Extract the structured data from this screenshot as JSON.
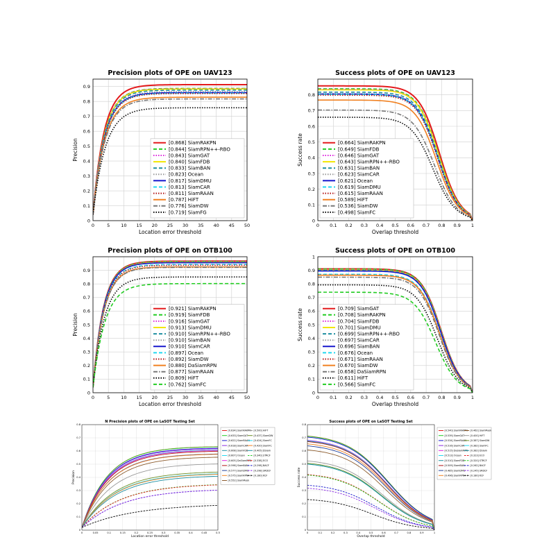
{
  "colors": {
    "red": "#e41a1c",
    "green": "#22cc22",
    "magenta": "#dd22dd",
    "yellow": "#f2e600",
    "teal": "#1e8fa0",
    "gray": "#999999",
    "blue": "#1515cc",
    "cyan": "#22d8f0",
    "darkred": "#b01010",
    "orange": "#f08020",
    "dimgray": "#777777",
    "black": "#000000",
    "navy": "#1f3f9a",
    "brown": "#8b5a2b",
    "purple": "#8a2be2",
    "olive": "#6b8e23"
  },
  "chart_data": [
    {
      "type": "line",
      "kind": "precision",
      "title": "Precision plots of OPE on UAV123",
      "xlabel": "Location error threshold",
      "ylabel": "Precision",
      "xlim": [
        0,
        50
      ],
      "ylim": [
        0,
        0.95
      ],
      "xticks": [
        0,
        5,
        10,
        15,
        20,
        25,
        30,
        35,
        40,
        45,
        50
      ],
      "yticks": [
        0,
        0.1,
        0.2,
        0.3,
        0.4,
        0.5,
        0.6,
        0.7,
        0.8,
        0.9
      ],
      "grid": true,
      "legend_loc": "lower-right",
      "series": [
        {
          "name": "[0.868] SiamRAKPN",
          "score": 0.868,
          "color": "red",
          "dash": "solid"
        },
        {
          "name": "[0.844] SiamRPN++-RBO",
          "score": 0.844,
          "color": "green",
          "dash": "dashed"
        },
        {
          "name": "[0.843] SiamGAT",
          "score": 0.843,
          "color": "magenta",
          "dash": "dotted"
        },
        {
          "name": "[0.840] SiamFDB",
          "score": 0.84,
          "color": "yellow",
          "dash": "solid"
        },
        {
          "name": "[0.833] SiamBAN",
          "score": 0.833,
          "color": "teal",
          "dash": "dashed"
        },
        {
          "name": "[0.823] Ocean",
          "score": 0.823,
          "color": "gray",
          "dash": "dotted"
        },
        {
          "name": "[0.817] SiamDMU",
          "score": 0.817,
          "color": "blue",
          "dash": "solid"
        },
        {
          "name": "[0.813] SiamCAR",
          "score": 0.813,
          "color": "cyan",
          "dash": "dashed"
        },
        {
          "name": "[0.811] SiamRAAN",
          "score": 0.811,
          "color": "darkred",
          "dash": "dotted"
        },
        {
          "name": "[0.787] HiFT",
          "score": 0.787,
          "color": "orange",
          "dash": "solid"
        },
        {
          "name": "[0.776] SiamDW",
          "score": 0.776,
          "color": "dimgray",
          "dash": "dashdot"
        },
        {
          "name": "[0.719] SiamFG",
          "score": 0.719,
          "color": "black",
          "dash": "dotted"
        }
      ]
    },
    {
      "type": "line",
      "kind": "success",
      "title": "Success plots of OPE on UAV123",
      "xlabel": "Overlap threshold",
      "ylabel": "Success rate",
      "xlim": [
        0,
        1
      ],
      "ylim": [
        0,
        0.9
      ],
      "xticks": [
        0,
        0.1,
        0.2,
        0.3,
        0.4,
        0.5,
        0.6,
        0.7,
        0.8,
        0.9,
        1
      ],
      "yticks": [
        0,
        0.1,
        0.2,
        0.3,
        0.4,
        0.5,
        0.6,
        0.7,
        0.8
      ],
      "grid": true,
      "legend_loc": "lower-left",
      "series": [
        {
          "name": "[0.664] SiamRAKPN",
          "score": 0.664,
          "color": "red",
          "dash": "solid"
        },
        {
          "name": "[0.649] SiamFDB",
          "score": 0.649,
          "color": "green",
          "dash": "dashed"
        },
        {
          "name": "[0.646] SiamGAT",
          "score": 0.646,
          "color": "magenta",
          "dash": "dotted"
        },
        {
          "name": "[0.643] SiamRPN++-RBO",
          "score": 0.643,
          "color": "yellow",
          "dash": "solid"
        },
        {
          "name": "[0.631] SiamBAN",
          "score": 0.631,
          "color": "teal",
          "dash": "dashed"
        },
        {
          "name": "[0.623] SiamCAR",
          "score": 0.623,
          "color": "gray",
          "dash": "dotted"
        },
        {
          "name": "[0.621] Ocean",
          "score": 0.621,
          "color": "blue",
          "dash": "solid"
        },
        {
          "name": "[0.619] SiamDMU",
          "score": 0.619,
          "color": "cyan",
          "dash": "dashed"
        },
        {
          "name": "[0.615] SiamRAAN",
          "score": 0.615,
          "color": "darkred",
          "dash": "dotted"
        },
        {
          "name": "[0.589] HiFT",
          "score": 0.589,
          "color": "orange",
          "dash": "solid"
        },
        {
          "name": "[0.536] SiamDW",
          "score": 0.536,
          "color": "dimgray",
          "dash": "dashdot"
        },
        {
          "name": "[0.498] SiamFC",
          "score": 0.498,
          "color": "black",
          "dash": "dotted"
        }
      ]
    },
    {
      "type": "line",
      "kind": "precision",
      "title": "Precision plots of OPE on OTB100",
      "xlabel": "Location error threshold",
      "ylabel": "Precision",
      "xlim": [
        0,
        50
      ],
      "ylim": [
        0,
        1.0
      ],
      "xticks": [
        0,
        5,
        10,
        15,
        20,
        25,
        30,
        35,
        40,
        45,
        50
      ],
      "yticks": [
        0,
        0.1,
        0.2,
        0.3,
        0.4,
        0.5,
        0.6,
        0.7,
        0.8,
        0.9
      ],
      "grid": true,
      "legend_loc": "lower-right",
      "series": [
        {
          "name": "[0.921] SiamRAKPN",
          "score": 0.921,
          "color": "red",
          "dash": "solid"
        },
        {
          "name": "[0.919] SiamFDB",
          "score": 0.919,
          "color": "green",
          "dash": "dashed"
        },
        {
          "name": "[0.916] SiamGAT",
          "score": 0.916,
          "color": "magenta",
          "dash": "dotted"
        },
        {
          "name": "[0.913] SiamDMU",
          "score": 0.913,
          "color": "yellow",
          "dash": "solid"
        },
        {
          "name": "[0.910] SiamRPN++-RBO",
          "score": 0.91,
          "color": "teal",
          "dash": "dashed"
        },
        {
          "name": "[0.910] SiamBAN",
          "score": 0.91,
          "color": "gray",
          "dash": "dotted"
        },
        {
          "name": "[0.910] SiamCAR",
          "score": 0.91,
          "color": "blue",
          "dash": "solid"
        },
        {
          "name": "[0.897] Ocean",
          "score": 0.897,
          "color": "cyan",
          "dash": "dashed"
        },
        {
          "name": "[0.892] SiamDW",
          "score": 0.892,
          "color": "darkred",
          "dash": "dotted"
        },
        {
          "name": "[0.880] DaSiamRPN",
          "score": 0.88,
          "color": "orange",
          "dash": "solid"
        },
        {
          "name": "[0.877] SiamRAAN",
          "score": 0.877,
          "color": "dimgray",
          "dash": "dashdot"
        },
        {
          "name": "[0.809] HiFT",
          "score": 0.809,
          "color": "black",
          "dash": "dotted"
        },
        {
          "name": "[0.762] SiamFC",
          "score": 0.762,
          "color": "green",
          "dash": "dashed"
        }
      ]
    },
    {
      "type": "line",
      "kind": "success",
      "title": "Success plots of OPE on OTB100",
      "xlabel": "Overlap threshold",
      "ylabel": "Success rate",
      "xlim": [
        0,
        1
      ],
      "ylim": [
        0,
        1.0
      ],
      "xticks": [
        0,
        0.1,
        0.2,
        0.3,
        0.4,
        0.5,
        0.6,
        0.7,
        0.8,
        0.9,
        1
      ],
      "yticks": [
        0,
        0.1,
        0.2,
        0.3,
        0.4,
        0.5,
        0.6,
        0.7,
        0.8,
        0.9,
        1
      ],
      "grid": true,
      "legend_loc": "lower-left",
      "series": [
        {
          "name": "[0.709] SiamGAT",
          "score": 0.709,
          "color": "red",
          "dash": "solid"
        },
        {
          "name": "[0.708] SiamRAKPN",
          "score": 0.708,
          "color": "green",
          "dash": "dashed"
        },
        {
          "name": "[0.704] SiamFDB",
          "score": 0.704,
          "color": "magenta",
          "dash": "dotted"
        },
        {
          "name": "[0.701] SiamDMU",
          "score": 0.701,
          "color": "yellow",
          "dash": "solid"
        },
        {
          "name": "[0.699] SiamRPN++-RBO",
          "score": 0.699,
          "color": "teal",
          "dash": "dashed"
        },
        {
          "name": "[0.697] SiamCAR",
          "score": 0.697,
          "color": "gray",
          "dash": "dotted"
        },
        {
          "name": "[0.696] SiamBAN",
          "score": 0.696,
          "color": "blue",
          "dash": "solid"
        },
        {
          "name": "[0.676] Ocean",
          "score": 0.676,
          "color": "cyan",
          "dash": "dashed"
        },
        {
          "name": "[0.671] SiamRAAN",
          "score": 0.671,
          "color": "darkred",
          "dash": "dotted"
        },
        {
          "name": "[0.670] SiamDW",
          "score": 0.67,
          "color": "orange",
          "dash": "solid"
        },
        {
          "name": "[0.658] DaSiamRPN",
          "score": 0.658,
          "color": "dimgray",
          "dash": "dashdot"
        },
        {
          "name": "[0.611] HiFT",
          "score": 0.611,
          "color": "black",
          "dash": "dotted"
        },
        {
          "name": "[0.566] SiamFC",
          "score": 0.566,
          "color": "green",
          "dash": "dashed"
        }
      ]
    },
    {
      "type": "line",
      "kind": "precision-small",
      "title": "N Precision plots of OPE on LaSOT Testing Set",
      "xlabel": "Location error threshold",
      "ylabel": "Precision",
      "xlim": [
        0,
        0.5
      ],
      "ylim": [
        0,
        0.8
      ],
      "xticks": [
        0,
        0.05,
        0.1,
        0.15,
        0.2,
        0.25,
        0.3,
        0.35,
        0.4,
        0.45,
        0.5
      ],
      "yticks": [
        0,
        0.1,
        0.2,
        0.3,
        0.4,
        0.5,
        0.6,
        0.7,
        0.8
      ],
      "grid": true,
      "legend_loc": "right",
      "legend_columns": 2,
      "series": [
        {
          "name": "[0.634] SiamRAKPN",
          "score": 0.634,
          "color": "red",
          "dash": "solid"
        },
        {
          "name": "[0.633] SiamGAT",
          "score": 0.633,
          "color": "green",
          "dash": "solid"
        },
        {
          "name": "[0.622] SiamRAAN",
          "score": 0.622,
          "color": "blue",
          "dash": "solid"
        },
        {
          "name": "[0.618] SiamCAR",
          "score": 0.618,
          "color": "purple",
          "dash": "solid"
        },
        {
          "name": "[0.608] SiamFDB",
          "score": 0.608,
          "color": "teal",
          "dash": "solid"
        },
        {
          "name": "[0.607] Ocean",
          "score": 0.607,
          "color": "cyan",
          "dash": "solid"
        },
        {
          "name": "[0.605] DaSiamRPN",
          "score": 0.605,
          "color": "magenta",
          "dash": "solid"
        },
        {
          "name": "[0.598] SiamBAN",
          "score": 0.598,
          "color": "darkred",
          "dash": "solid"
        },
        {
          "name": "[0.577] SiamDMU",
          "score": 0.577,
          "color": "navy",
          "dash": "solid"
        },
        {
          "name": "[0.575] SiamRPN++",
          "score": 0.575,
          "color": "orange",
          "dash": "solid"
        },
        {
          "name": "[0.552] SiamMask",
          "score": 0.552,
          "color": "brown",
          "dash": "solid"
        },
        {
          "name": "[0.500] HiFT",
          "score": 0.5,
          "color": "gray",
          "dash": "solid"
        },
        {
          "name": "[0.437] SiamDW",
          "score": 0.437,
          "color": "olive",
          "dash": "solid"
        },
        {
          "name": "[0.424] SiamFC",
          "score": 0.424,
          "color": "cyan",
          "dash": "solid"
        },
        {
          "name": "[0.420] SiamFC",
          "score": 0.42,
          "color": "orange",
          "dash": "solid"
        },
        {
          "name": "[0.405] DSiam",
          "score": 0.405,
          "color": "teal",
          "dash": "solid"
        },
        {
          "name": "[0.340] STRCF",
          "score": 0.34,
          "color": "green",
          "dash": "dashed"
        },
        {
          "name": "[0.338] ECO",
          "score": 0.338,
          "color": "red",
          "dash": "dashed"
        },
        {
          "name": "[0.298] BACF",
          "score": 0.298,
          "color": "blue",
          "dash": "dashed"
        },
        {
          "name": "[0.298] SRDCF",
          "score": 0.298,
          "color": "purple",
          "dash": "dashed"
        },
        {
          "name": "[0.180] KCF",
          "score": 0.18,
          "color": "black",
          "dash": "dashed"
        }
      ]
    },
    {
      "type": "line",
      "kind": "success-small",
      "title": "Success plots of OPE on LaSOT Testing Set",
      "xlabel": "Overlap threshold",
      "ylabel": "Success rate",
      "xlim": [
        0,
        1
      ],
      "ylim": [
        0,
        0.8
      ],
      "xticks": [
        0,
        0.1,
        0.2,
        0.3,
        0.4,
        0.5,
        0.6,
        0.7,
        0.8,
        0.9,
        1
      ],
      "yticks": [
        0,
        0.1,
        0.2,
        0.3,
        0.4,
        0.5,
        0.6,
        0.7,
        0.8
      ],
      "grid": true,
      "legend_loc": "right",
      "legend_columns": 2,
      "series": [
        {
          "name": "[0.540] SiamRAKPN",
          "score": 0.54,
          "color": "red",
          "dash": "solid"
        },
        {
          "name": "[0.539] SiamGAT",
          "score": 0.539,
          "color": "green",
          "dash": "solid"
        },
        {
          "name": "[0.534] SiamRAAN",
          "score": 0.534,
          "color": "blue",
          "dash": "solid"
        },
        {
          "name": "[0.516] SiamCAR",
          "score": 0.516,
          "color": "purple",
          "dash": "solid"
        },
        {
          "name": "[0.515] DaSiamRPN",
          "score": 0.515,
          "color": "magenta",
          "dash": "solid"
        },
        {
          "name": "[0.513] Ocean",
          "score": 0.513,
          "color": "cyan",
          "dash": "solid"
        },
        {
          "name": "[0.510] SiamFDB",
          "score": 0.51,
          "color": "teal",
          "dash": "solid"
        },
        {
          "name": "[0.509] SiamBAN",
          "score": 0.509,
          "color": "darkred",
          "dash": "solid"
        },
        {
          "name": "[0.485] SiamDMU",
          "score": 0.485,
          "color": "navy",
          "dash": "solid"
        },
        {
          "name": "[0.496] SiamRPN++",
          "score": 0.496,
          "color": "orange",
          "dash": "solid"
        },
        {
          "name": "[0.462] SiamMask",
          "score": 0.462,
          "color": "brown",
          "dash": "solid"
        },
        {
          "name": "[0.400] HiFT",
          "score": 0.4,
          "color": "gray",
          "dash": "solid"
        },
        {
          "name": "[0.387] SiamDW",
          "score": 0.387,
          "color": "olive",
          "dash": "solid"
        },
        {
          "name": "[0.382] SiamFC",
          "score": 0.382,
          "color": "cyan",
          "dash": "solid"
        },
        {
          "name": "[0.382] DSiam",
          "score": 0.382,
          "color": "teal",
          "dash": "solid"
        },
        {
          "name": "[0.323] ECO",
          "score": 0.323,
          "color": "red",
          "dash": "dashed"
        },
        {
          "name": "[0.320] STRCF",
          "score": 0.32,
          "color": "green",
          "dash": "dashed"
        },
        {
          "name": "[0.262] BACF",
          "score": 0.262,
          "color": "blue",
          "dash": "dashed"
        },
        {
          "name": "[0.245] SRDCF",
          "score": 0.245,
          "color": "purple",
          "dash": "dashed"
        },
        {
          "name": "[0.180] KCF",
          "score": 0.18,
          "color": "black",
          "dash": "dashed"
        }
      ]
    }
  ]
}
